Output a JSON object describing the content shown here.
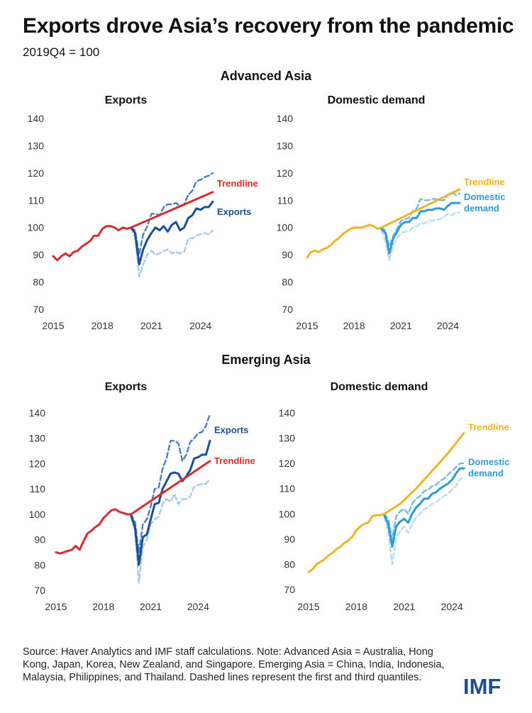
{
  "title": "Exports drove Asia’s recovery from the pandemic",
  "subtitle": "2019Q4 = 100",
  "note": "Source: Haver Analytics and IMF staff calculations. Note: Advanced Asia = Australia, Hong Kong, Japan, Korea, New Zealand, and Singapore. Emerging Asia = China, India, Indonesia, Malaysia, Philippines, and Thailand. Dashed lines represent the first and third quantiles.",
  "logo": "IMF",
  "sections": [
    "Advanced Asia",
    "Emerging Asia"
  ],
  "colors": {
    "red": "#d62e2e",
    "navy": "#1b4f93",
    "navy_dash": "#4a7fc0",
    "navy_light": "#a9c9ea",
    "orange": "#f0b429",
    "sky": "#2f9ad8",
    "sky_dash": "#6fbde9",
    "sky_light": "#b8dcf2"
  },
  "chart_data": [
    {
      "type": "line",
      "section": "Advanced Asia",
      "title": "Exports",
      "ylim": [
        70,
        140
      ],
      "yticks": [
        70,
        80,
        90,
        100,
        110,
        120,
        130,
        140
      ],
      "xticks": [
        "2015",
        "2018",
        "2021",
        "2024"
      ],
      "xrange": [
        "2015Q1",
        "2024Q4"
      ],
      "grid": false,
      "series": [
        {
          "name": "Trendline",
          "style": "trend-red",
          "label_side": "end",
          "x": [
            "2015Q1",
            "2015Q2",
            "2015Q3",
            "2015Q4",
            "2016Q1",
            "2016Q2",
            "2016Q3",
            "2016Q4",
            "2017Q1",
            "2017Q2",
            "2017Q3",
            "2017Q4",
            "2018Q1",
            "2018Q2",
            "2018Q3",
            "2018Q4",
            "2019Q1",
            "2019Q2",
            "2019Q3",
            "2019Q4",
            "2024Q4"
          ],
          "values": [
            89.5,
            88.0,
            89.5,
            90.5,
            89.5,
            91.0,
            91.5,
            93.0,
            94.0,
            95.0,
            97.0,
            97.0,
            99.5,
            100.5,
            100.5,
            100.0,
            99.0,
            100.0,
            99.5,
            100.0,
            113.0
          ]
        },
        {
          "name": "Exports",
          "style": "median-navy",
          "label_side": "end",
          "x": [
            "2019Q4",
            "2020Q1",
            "2020Q2",
            "2020Q3",
            "2020Q4",
            "2021Q1",
            "2021Q2",
            "2021Q3",
            "2021Q4",
            "2022Q1",
            "2022Q2",
            "2022Q3",
            "2022Q4",
            "2023Q1",
            "2023Q2",
            "2023Q3",
            "2023Q4",
            "2024Q1",
            "2024Q2",
            "2024Q3",
            "2024Q4"
          ],
          "values": [
            100,
            98,
            86.5,
            92,
            95.5,
            98,
            100,
            99,
            100.5,
            98.5,
            101,
            102,
            99,
            100,
            103.5,
            104.5,
            107,
            106.5,
            107.5,
            107.5,
            109.5
          ]
        },
        {
          "name": "",
          "style": "q3-navy",
          "x": [
            "2019Q4",
            "2020Q1",
            "2020Q2",
            "2020Q3",
            "2020Q4",
            "2021Q1",
            "2021Q2",
            "2021Q3",
            "2021Q4",
            "2022Q1",
            "2022Q2",
            "2022Q3",
            "2022Q4",
            "2023Q1",
            "2023Q2",
            "2023Q3",
            "2023Q4",
            "2024Q1",
            "2024Q2",
            "2024Q3",
            "2024Q4"
          ],
          "values": [
            100,
            99,
            90,
            97.5,
            100.5,
            105,
            105,
            104.5,
            107.5,
            108.5,
            108.5,
            109,
            108,
            108.5,
            112,
            113.5,
            117,
            117.5,
            118.5,
            119,
            120
          ]
        },
        {
          "name": "",
          "style": "q1-navy",
          "x": [
            "2019Q4",
            "2020Q1",
            "2020Q2",
            "2020Q3",
            "2020Q4",
            "2021Q1",
            "2021Q2",
            "2021Q3",
            "2021Q4",
            "2022Q1",
            "2022Q2",
            "2022Q3",
            "2022Q4",
            "2023Q1",
            "2023Q2",
            "2023Q3",
            "2023Q4",
            "2024Q1",
            "2024Q2",
            "2024Q3",
            "2024Q4"
          ],
          "values": [
            100,
            96.5,
            82,
            86.5,
            90,
            91.5,
            90,
            90.5,
            91.5,
            92,
            90.5,
            91,
            90.5,
            91,
            96,
            96,
            97,
            97.5,
            98,
            97.5,
            99
          ]
        }
      ]
    },
    {
      "type": "line",
      "section": "Advanced Asia",
      "title": "Domestic demand",
      "ylim": [
        70,
        140
      ],
      "yticks": [
        70,
        80,
        90,
        100,
        110,
        120,
        130,
        140
      ],
      "xticks": [
        "2015",
        "2018",
        "2021",
        "2024"
      ],
      "xrange": [
        "2015Q1",
        "2024Q4"
      ],
      "grid": false,
      "series": [
        {
          "name": "Trendline",
          "style": "trend-orange",
          "label_side": "end",
          "x": [
            "2015Q1",
            "2015Q2",
            "2015Q3",
            "2015Q4",
            "2016Q1",
            "2016Q2",
            "2016Q3",
            "2016Q4",
            "2017Q1",
            "2017Q2",
            "2017Q3",
            "2017Q4",
            "2018Q1",
            "2018Q2",
            "2018Q3",
            "2018Q4",
            "2019Q1",
            "2019Q2",
            "2019Q3",
            "2019Q4",
            "2024Q4"
          ],
          "values": [
            89,
            91,
            91.5,
            91,
            92,
            92.5,
            93.5,
            95,
            96,
            97.5,
            98.5,
            99.5,
            100,
            100,
            100,
            100.5,
            101,
            100.5,
            99.5,
            100,
            114
          ]
        },
        {
          "name": "Domestic demand",
          "style": "median-sky",
          "label_side": "end",
          "x": [
            "2019Q4",
            "2020Q1",
            "2020Q2",
            "2020Q3",
            "2020Q4",
            "2021Q1",
            "2021Q2",
            "2021Q3",
            "2021Q4",
            "2022Q1",
            "2022Q2",
            "2022Q3",
            "2022Q4",
            "2023Q1",
            "2023Q2",
            "2023Q3",
            "2023Q4",
            "2024Q1",
            "2024Q2",
            "2024Q3",
            "2024Q4"
          ],
          "values": [
            99.5,
            98,
            90.5,
            96,
            98.5,
            101,
            102,
            102,
            103.5,
            103.5,
            106,
            106,
            106.5,
            106.5,
            107,
            107,
            106.5,
            108,
            109,
            109,
            109
          ]
        },
        {
          "name": "",
          "style": "q3-sky",
          "x": [
            "2019Q4",
            "2020Q1",
            "2020Q2",
            "2020Q3",
            "2020Q4",
            "2021Q1",
            "2021Q2",
            "2021Q3",
            "2021Q4",
            "2022Q1",
            "2022Q2",
            "2022Q3",
            "2022Q4",
            "2023Q1",
            "2023Q2",
            "2023Q3",
            "2023Q4",
            "2024Q1",
            "2024Q2",
            "2024Q3",
            "2024Q4"
          ],
          "values": [
            100,
            99,
            93,
            97,
            99.5,
            102.5,
            103,
            103.5,
            106,
            107,
            110.5,
            110,
            110,
            110.5,
            110.5,
            110,
            110,
            112,
            113,
            112,
            112.5
          ]
        },
        {
          "name": "",
          "style": "q1-sky",
          "x": [
            "2019Q4",
            "2020Q1",
            "2020Q2",
            "2020Q3",
            "2020Q4",
            "2021Q1",
            "2021Q2",
            "2021Q3",
            "2021Q4",
            "2022Q1",
            "2022Q2",
            "2022Q3",
            "2022Q4",
            "2023Q1",
            "2023Q2",
            "2023Q3",
            "2023Q4",
            "2024Q1",
            "2024Q2",
            "2024Q3",
            "2024Q4"
          ],
          "values": [
            99,
            95,
            88,
            93.5,
            96,
            98,
            98.5,
            98.5,
            100,
            100.5,
            101.5,
            101.5,
            102.5,
            102.5,
            103,
            103,
            104,
            105,
            104.5,
            105.5,
            105.5
          ]
        }
      ]
    },
    {
      "type": "line",
      "section": "Emerging Asia",
      "title": "Exports",
      "ylim": [
        70,
        140
      ],
      "yticks": [
        70,
        80,
        90,
        100,
        110,
        120,
        130,
        140
      ],
      "xticks": [
        "2015",
        "2018",
        "2021",
        "2024"
      ],
      "xrange": [
        "2015Q1",
        "2024Q4"
      ],
      "grid": false,
      "series": [
        {
          "name": "Trendline",
          "style": "trend-red",
          "label_side": "end",
          "x": [
            "2015Q1",
            "2015Q2",
            "2015Q3",
            "2015Q4",
            "2016Q1",
            "2016Q2",
            "2016Q3",
            "2016Q4",
            "2017Q1",
            "2017Q2",
            "2017Q3",
            "2017Q4",
            "2018Q1",
            "2018Q2",
            "2018Q3",
            "2018Q4",
            "2019Q1",
            "2019Q2",
            "2019Q3",
            "2019Q4",
            "2024Q4"
          ],
          "values": [
            85,
            84.5,
            85,
            85.5,
            86,
            87.5,
            86,
            89.5,
            92.5,
            93.5,
            95,
            96,
            98.5,
            100,
            101.5,
            102,
            101,
            100.5,
            100,
            100,
            121
          ]
        },
        {
          "name": "Exports",
          "style": "median-navy",
          "label_side": "end",
          "x": [
            "2019Q4",
            "2020Q1",
            "2020Q2",
            "2020Q3",
            "2020Q4",
            "2021Q1",
            "2021Q2",
            "2021Q3",
            "2021Q4",
            "2022Q1",
            "2022Q2",
            "2022Q3",
            "2022Q4",
            "2023Q1",
            "2023Q2",
            "2023Q3",
            "2023Q4",
            "2024Q1",
            "2024Q2",
            "2024Q3",
            "2024Q4"
          ],
          "values": [
            99.5,
            95,
            80,
            91,
            92,
            98,
            104,
            104.5,
            110,
            113,
            116,
            116.5,
            116,
            113,
            115,
            117.5,
            122,
            122.5,
            123.5,
            123.5,
            129
          ]
        },
        {
          "name": "",
          "style": "q3-navy",
          "x": [
            "2019Q4",
            "2020Q1",
            "2020Q2",
            "2020Q3",
            "2020Q4",
            "2021Q1",
            "2021Q2",
            "2021Q3",
            "2021Q4",
            "2022Q1",
            "2022Q2",
            "2022Q3",
            "2022Q4",
            "2023Q1",
            "2023Q2",
            "2023Q3",
            "2023Q4",
            "2024Q1",
            "2024Q2",
            "2024Q3",
            "2024Q4"
          ],
          "values": [
            100,
            97,
            85,
            96,
            98,
            103,
            110,
            110.5,
            118,
            122,
            129,
            129,
            128,
            121,
            123.5,
            128.5,
            130,
            132,
            132.5,
            135,
            139.5
          ]
        },
        {
          "name": "",
          "style": "q1-navy",
          "x": [
            "2019Q4",
            "2020Q1",
            "2020Q2",
            "2020Q3",
            "2020Q4",
            "2021Q1",
            "2021Q2",
            "2021Q3",
            "2021Q4",
            "2022Q1",
            "2022Q2",
            "2022Q3",
            "2022Q4",
            "2023Q1",
            "2023Q2",
            "2023Q3",
            "2023Q4",
            "2024Q1",
            "2024Q2",
            "2024Q3",
            "2024Q4"
          ],
          "values": [
            99,
            93,
            73,
            87,
            90,
            96,
            98,
            99,
            104,
            106,
            105,
            108,
            104,
            106,
            106,
            107,
            111,
            111.5,
            112,
            112,
            114
          ]
        }
      ]
    },
    {
      "type": "line",
      "section": "Emerging Asia",
      "title": "Domestic demand",
      "ylim": [
        70,
        140
      ],
      "yticks": [
        70,
        80,
        90,
        100,
        110,
        120,
        130,
        140
      ],
      "xticks": [
        "2015",
        "2018",
        "2021",
        "2024"
      ],
      "xrange": [
        "2015Q1",
        "2024Q4"
      ],
      "grid": false,
      "series": [
        {
          "name": "Trendline",
          "style": "trend-orange",
          "label_side": "end",
          "x": [
            "2015Q1",
            "2015Q2",
            "2015Q3",
            "2015Q4",
            "2016Q1",
            "2016Q2",
            "2016Q3",
            "2016Q4",
            "2017Q1",
            "2017Q2",
            "2017Q3",
            "2017Q4",
            "2018Q1",
            "2018Q2",
            "2018Q3",
            "2018Q4",
            "2019Q1",
            "2019Q2",
            "2019Q3",
            "2019Q4",
            "2020Q4",
            "2021Q4",
            "2022Q4",
            "2023Q4",
            "2024Q4"
          ],
          "values": [
            77,
            78,
            80,
            81,
            82,
            83.5,
            84.5,
            86,
            87,
            88.5,
            89.5,
            91,
            93.5,
            95,
            96,
            96.5,
            99,
            99.5,
            99.5,
            100,
            104,
            110,
            117,
            124,
            132
          ]
        },
        {
          "name": "Domestic demand",
          "style": "median-sky",
          "label_side": "end",
          "x": [
            "2019Q4",
            "2020Q1",
            "2020Q2",
            "2020Q3",
            "2020Q4",
            "2021Q1",
            "2021Q2",
            "2021Q3",
            "2021Q4",
            "2022Q1",
            "2022Q2",
            "2022Q3",
            "2022Q4",
            "2023Q1",
            "2023Q2",
            "2023Q3",
            "2023Q4",
            "2024Q1",
            "2024Q2",
            "2024Q3",
            "2024Q4"
          ],
          "values": [
            99.5,
            96,
            87,
            95,
            97,
            98,
            96.5,
            100,
            102.5,
            104,
            106,
            106,
            108,
            108.5,
            110,
            111,
            112,
            113.5,
            116,
            118,
            118
          ]
        },
        {
          "name": "",
          "style": "q3-sky",
          "x": [
            "2019Q4",
            "2020Q1",
            "2020Q2",
            "2020Q3",
            "2020Q4",
            "2021Q1",
            "2021Q2",
            "2021Q3",
            "2021Q4",
            "2022Q1",
            "2022Q2",
            "2022Q3",
            "2022Q4",
            "2023Q1",
            "2023Q2",
            "2023Q3",
            "2023Q4",
            "2024Q1",
            "2024Q2",
            "2024Q3",
            "2024Q4"
          ],
          "values": [
            100,
            98,
            90,
            99,
            101,
            102,
            100,
            104,
            106,
            107,
            109,
            109.5,
            111,
            111.5,
            113,
            114,
            115.5,
            117,
            118.5,
            120,
            120
          ]
        },
        {
          "name": "",
          "style": "q1-sky",
          "x": [
            "2019Q4",
            "2020Q1",
            "2020Q2",
            "2020Q3",
            "2020Q4",
            "2021Q1",
            "2021Q2",
            "2021Q3",
            "2021Q4",
            "2022Q1",
            "2022Q2",
            "2022Q3",
            "2022Q4",
            "2023Q1",
            "2023Q2",
            "2023Q3",
            "2023Q4",
            "2024Q1",
            "2024Q2",
            "2024Q3",
            "2024Q4"
          ],
          "values": [
            99,
            93,
            80,
            91,
            93,
            95,
            92.5,
            96,
            98.5,
            100,
            102,
            102.5,
            104,
            104.5,
            106,
            107,
            108,
            109.5,
            111,
            114,
            114
          ]
        }
      ]
    }
  ]
}
